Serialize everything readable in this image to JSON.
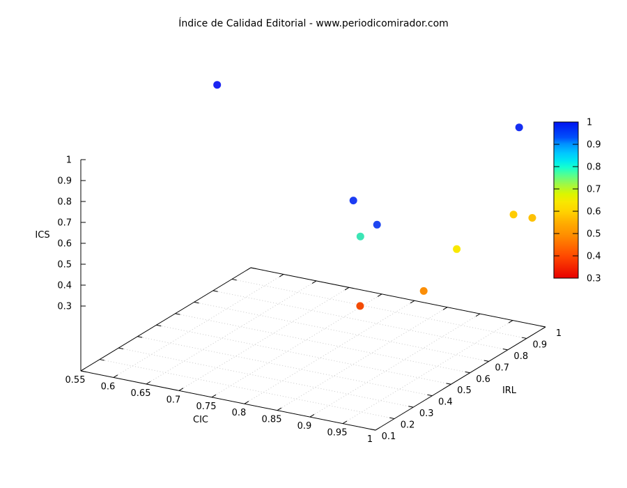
{
  "title": "Índice de Calidad Editorial - www.periodicomirador.com",
  "chart_data": {
    "type": "scatter",
    "projection": "3d",
    "grid": "dotted",
    "axes": {
      "x": {
        "label": "CIC",
        "min": 0.55,
        "max": 1,
        "ticks": [
          {
            "v": 0.55,
            "label": "0.55"
          },
          {
            "v": 0.6,
            "label": "0.6"
          },
          {
            "v": 0.65,
            "label": "0.65"
          },
          {
            "v": 0.7,
            "label": "0.7"
          },
          {
            "v": 0.75,
            "label": "0.75"
          },
          {
            "v": 0.8,
            "label": "0.8"
          },
          {
            "v": 0.85,
            "label": "0.85"
          },
          {
            "v": 0.9,
            "label": "0.9"
          },
          {
            "v": 0.95,
            "label": "0.95"
          },
          {
            "v": 1,
            "label": "1"
          }
        ]
      },
      "y": {
        "label": "IRL",
        "min": 0.1,
        "max": 1,
        "ticks": [
          {
            "v": 0.1,
            "label": "0.1"
          },
          {
            "v": 0.2,
            "label": "0.2"
          },
          {
            "v": 0.3,
            "label": "0.3"
          },
          {
            "v": 0.4,
            "label": "0.4"
          },
          {
            "v": 0.5,
            "label": "0.5"
          },
          {
            "v": 0.6,
            "label": "0.6"
          },
          {
            "v": 0.7,
            "label": "0.7"
          },
          {
            "v": 0.8,
            "label": "0.8"
          },
          {
            "v": 0.9,
            "label": "0.9"
          },
          {
            "v": 1,
            "label": "1"
          }
        ]
      },
      "z": {
        "label": "ICS",
        "min": 0.3,
        "max": 1,
        "ticks": [
          {
            "v": 0.3,
            "label": "0.3"
          },
          {
            "v": 0.4,
            "label": "0.4"
          },
          {
            "v": 0.5,
            "label": "0.5"
          },
          {
            "v": 0.6,
            "label": "0.6"
          },
          {
            "v": 0.7,
            "label": "0.7"
          },
          {
            "v": 0.8,
            "label": "0.8"
          },
          {
            "v": 0.9,
            "label": "0.9"
          },
          {
            "v": 1,
            "label": "1"
          }
        ]
      }
    },
    "colorbar": {
      "min": 0.3,
      "max": 1,
      "ticks": [
        {
          "v": 1,
          "label": "1"
        },
        {
          "v": 0.9,
          "label": "0.9"
        },
        {
          "v": 0.8,
          "label": "0.8"
        },
        {
          "v": 0.7,
          "label": "0.7"
        },
        {
          "v": 0.6,
          "label": "0.6"
        },
        {
          "v": 0.5,
          "label": "0.5"
        },
        {
          "v": 0.4,
          "label": "0.4"
        },
        {
          "v": 0.3,
          "label": "0.3"
        }
      ],
      "gradient": [
        {
          "o": 0,
          "c": "#0013f0"
        },
        {
          "o": 10,
          "c": "#0050fb"
        },
        {
          "o": 14,
          "c": "#0090ff"
        },
        {
          "o": 20,
          "c": "#00c8ff"
        },
        {
          "o": 25,
          "c": "#00e8f0"
        },
        {
          "o": 29,
          "c": "#14ffd0"
        },
        {
          "o": 34,
          "c": "#55ff90"
        },
        {
          "o": 40,
          "c": "#a0f845"
        },
        {
          "o": 46,
          "c": "#daf600"
        },
        {
          "o": 51,
          "c": "#f8e800"
        },
        {
          "o": 57,
          "c": "#ffd400"
        },
        {
          "o": 65,
          "c": "#ffab00"
        },
        {
          "o": 72,
          "c": "#ff9000"
        },
        {
          "o": 86,
          "c": "#ff4800"
        },
        {
          "o": 100,
          "c": "#e70000"
        }
      ]
    },
    "points": [
      {
        "cic": 0.565,
        "irl": 0.77,
        "ics": 1.0,
        "color": "#1b24f2"
      },
      {
        "cic": 0.98,
        "irl": 0.93,
        "ics": 0.97,
        "color": "#162ff2"
      },
      {
        "cic": 0.92,
        "irl": 0.26,
        "ics": 0.95,
        "color": "#1c3cf3"
      },
      {
        "cic": 0.985,
        "irl": 0.16,
        "ics": 0.93,
        "color": "#1e46f1"
      },
      {
        "cic": 0.925,
        "irl": 0.28,
        "ics": 0.77,
        "color": "#3ce5b5"
      },
      {
        "cic": 0.98,
        "irl": 0.9,
        "ics": 0.57,
        "color": "#ffcc01"
      },
      {
        "cic": 1.0,
        "irl": 0.93,
        "ics": 0.55,
        "color": "#fdc104"
      },
      {
        "cic": 1.0,
        "irl": 0.53,
        "ics": 0.62,
        "color": "#f9e800"
      },
      {
        "cic": 0.99,
        "irl": 0.39,
        "ics": 0.49,
        "color": "#fb8e06"
      },
      {
        "cic": 0.89,
        "irl": 0.4,
        "ics": 0.35,
        "color": "#f34b04"
      }
    ]
  }
}
